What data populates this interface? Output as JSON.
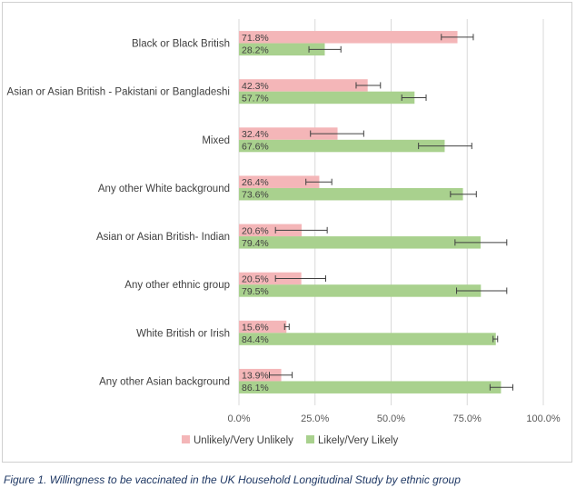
{
  "chart_data": {
    "type": "bar",
    "orientation": "horizontal",
    "stacked": false,
    "categories": [
      "Black or Black British",
      "Asian or Asian British - Pakistani or Bangladeshi",
      "Mixed",
      "Any other White background",
      "Asian or Asian British- Indian",
      "Any other ethnic group",
      "White British or Irish",
      "Any other Asian background"
    ],
    "series": [
      {
        "name": "Unlikely/Very Unlikely",
        "color": "#f4b6b8",
        "values": [
          71.8,
          42.3,
          32.4,
          26.4,
          20.6,
          20.5,
          15.6,
          13.9
        ],
        "labels": [
          "71.8%",
          "42.3%",
          "32.4%",
          "26.4%",
          "20.6%",
          "20.5%",
          "15.6%",
          "13.9%"
        ],
        "error_low": [
          66.5,
          38.5,
          23.5,
          22.0,
          12.0,
          12.0,
          15.0,
          10.0
        ],
        "error_high": [
          77.0,
          46.5,
          41.0,
          30.5,
          29.0,
          28.5,
          16.5,
          17.5
        ]
      },
      {
        "name": "Likely/Very Likely",
        "color": "#a9d18e",
        "values": [
          28.2,
          57.7,
          67.6,
          73.6,
          79.4,
          79.5,
          84.4,
          86.1
        ],
        "labels": [
          "28.2%",
          "57.7%",
          "67.6%",
          "73.6%",
          "79.4%",
          "79.5%",
          "84.4%",
          "86.1%"
        ],
        "error_low": [
          23.0,
          53.5,
          59.0,
          69.5,
          71.0,
          71.5,
          83.5,
          82.5
        ],
        "error_high": [
          33.5,
          61.5,
          76.5,
          78.0,
          88.0,
          88.0,
          85.0,
          90.0
        ]
      }
    ],
    "x_ticks": [
      "0.0%",
      "25.0%",
      "50.0%",
      "75.0%",
      "100.0%"
    ],
    "xlim": [
      0,
      100
    ],
    "grid": true,
    "legend_position": "bottom",
    "title": ""
  },
  "caption": "Figure 1. Willingness to be vaccinated in the UK Household Longitudinal Study by ethnic group"
}
